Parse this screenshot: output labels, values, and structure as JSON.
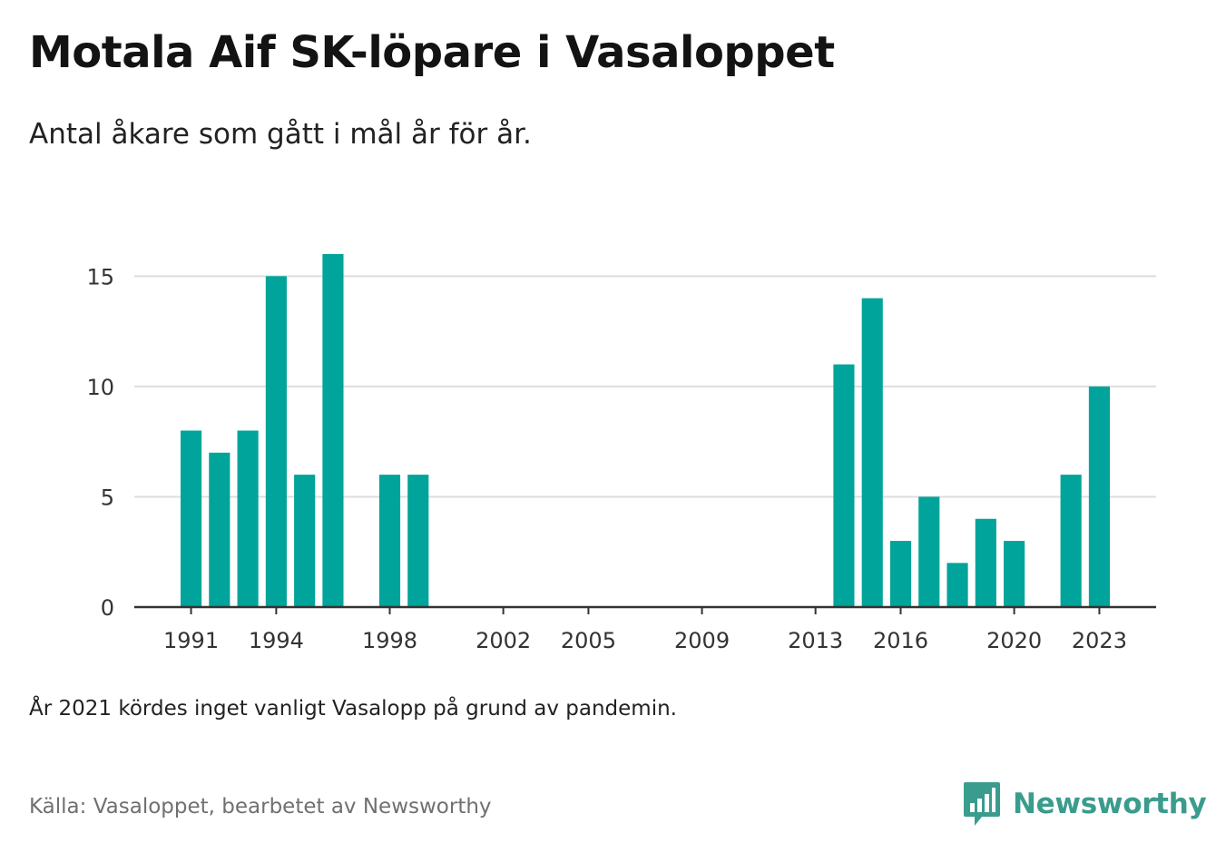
{
  "header": {
    "title": "Motala Aif SK-löpare i Vasaloppet",
    "subtitle": "Antal åkare som gått i mål år för år."
  },
  "footer": {
    "note": "År 2021 kördes inget vanligt Vasalopp på grund av pandemin.",
    "source": "Källa: Vasaloppet, bearbetet av Newsworthy",
    "brand": "Newsworthy"
  },
  "colors": {
    "bar": "#00a49a",
    "brand": "#3a9c8c",
    "grid": "#dddddd",
    "axis": "#333333"
  },
  "icons": {
    "logo": "newsworthy-bar-chart-speech-bubble-icon"
  },
  "chart_data": {
    "type": "bar",
    "x": [
      1991,
      1992,
      1993,
      1994,
      1995,
      1996,
      1998,
      1999,
      2014,
      2015,
      2016,
      2017,
      2018,
      2019,
      2020,
      2022,
      2023
    ],
    "values": [
      8,
      7,
      8,
      15,
      6,
      16,
      6,
      6,
      11,
      14,
      3,
      5,
      2,
      4,
      3,
      6,
      10
    ],
    "xlim": [
      1989,
      2025
    ],
    "ylim": [
      0,
      16
    ],
    "x_ticks": [
      "1991",
      "1994",
      "1998",
      "2002",
      "2005",
      "2009",
      "2013",
      "2016",
      "2020",
      "2023"
    ],
    "y_ticks": [
      "0",
      "5",
      "10",
      "15"
    ],
    "grid": "horizontal"
  }
}
